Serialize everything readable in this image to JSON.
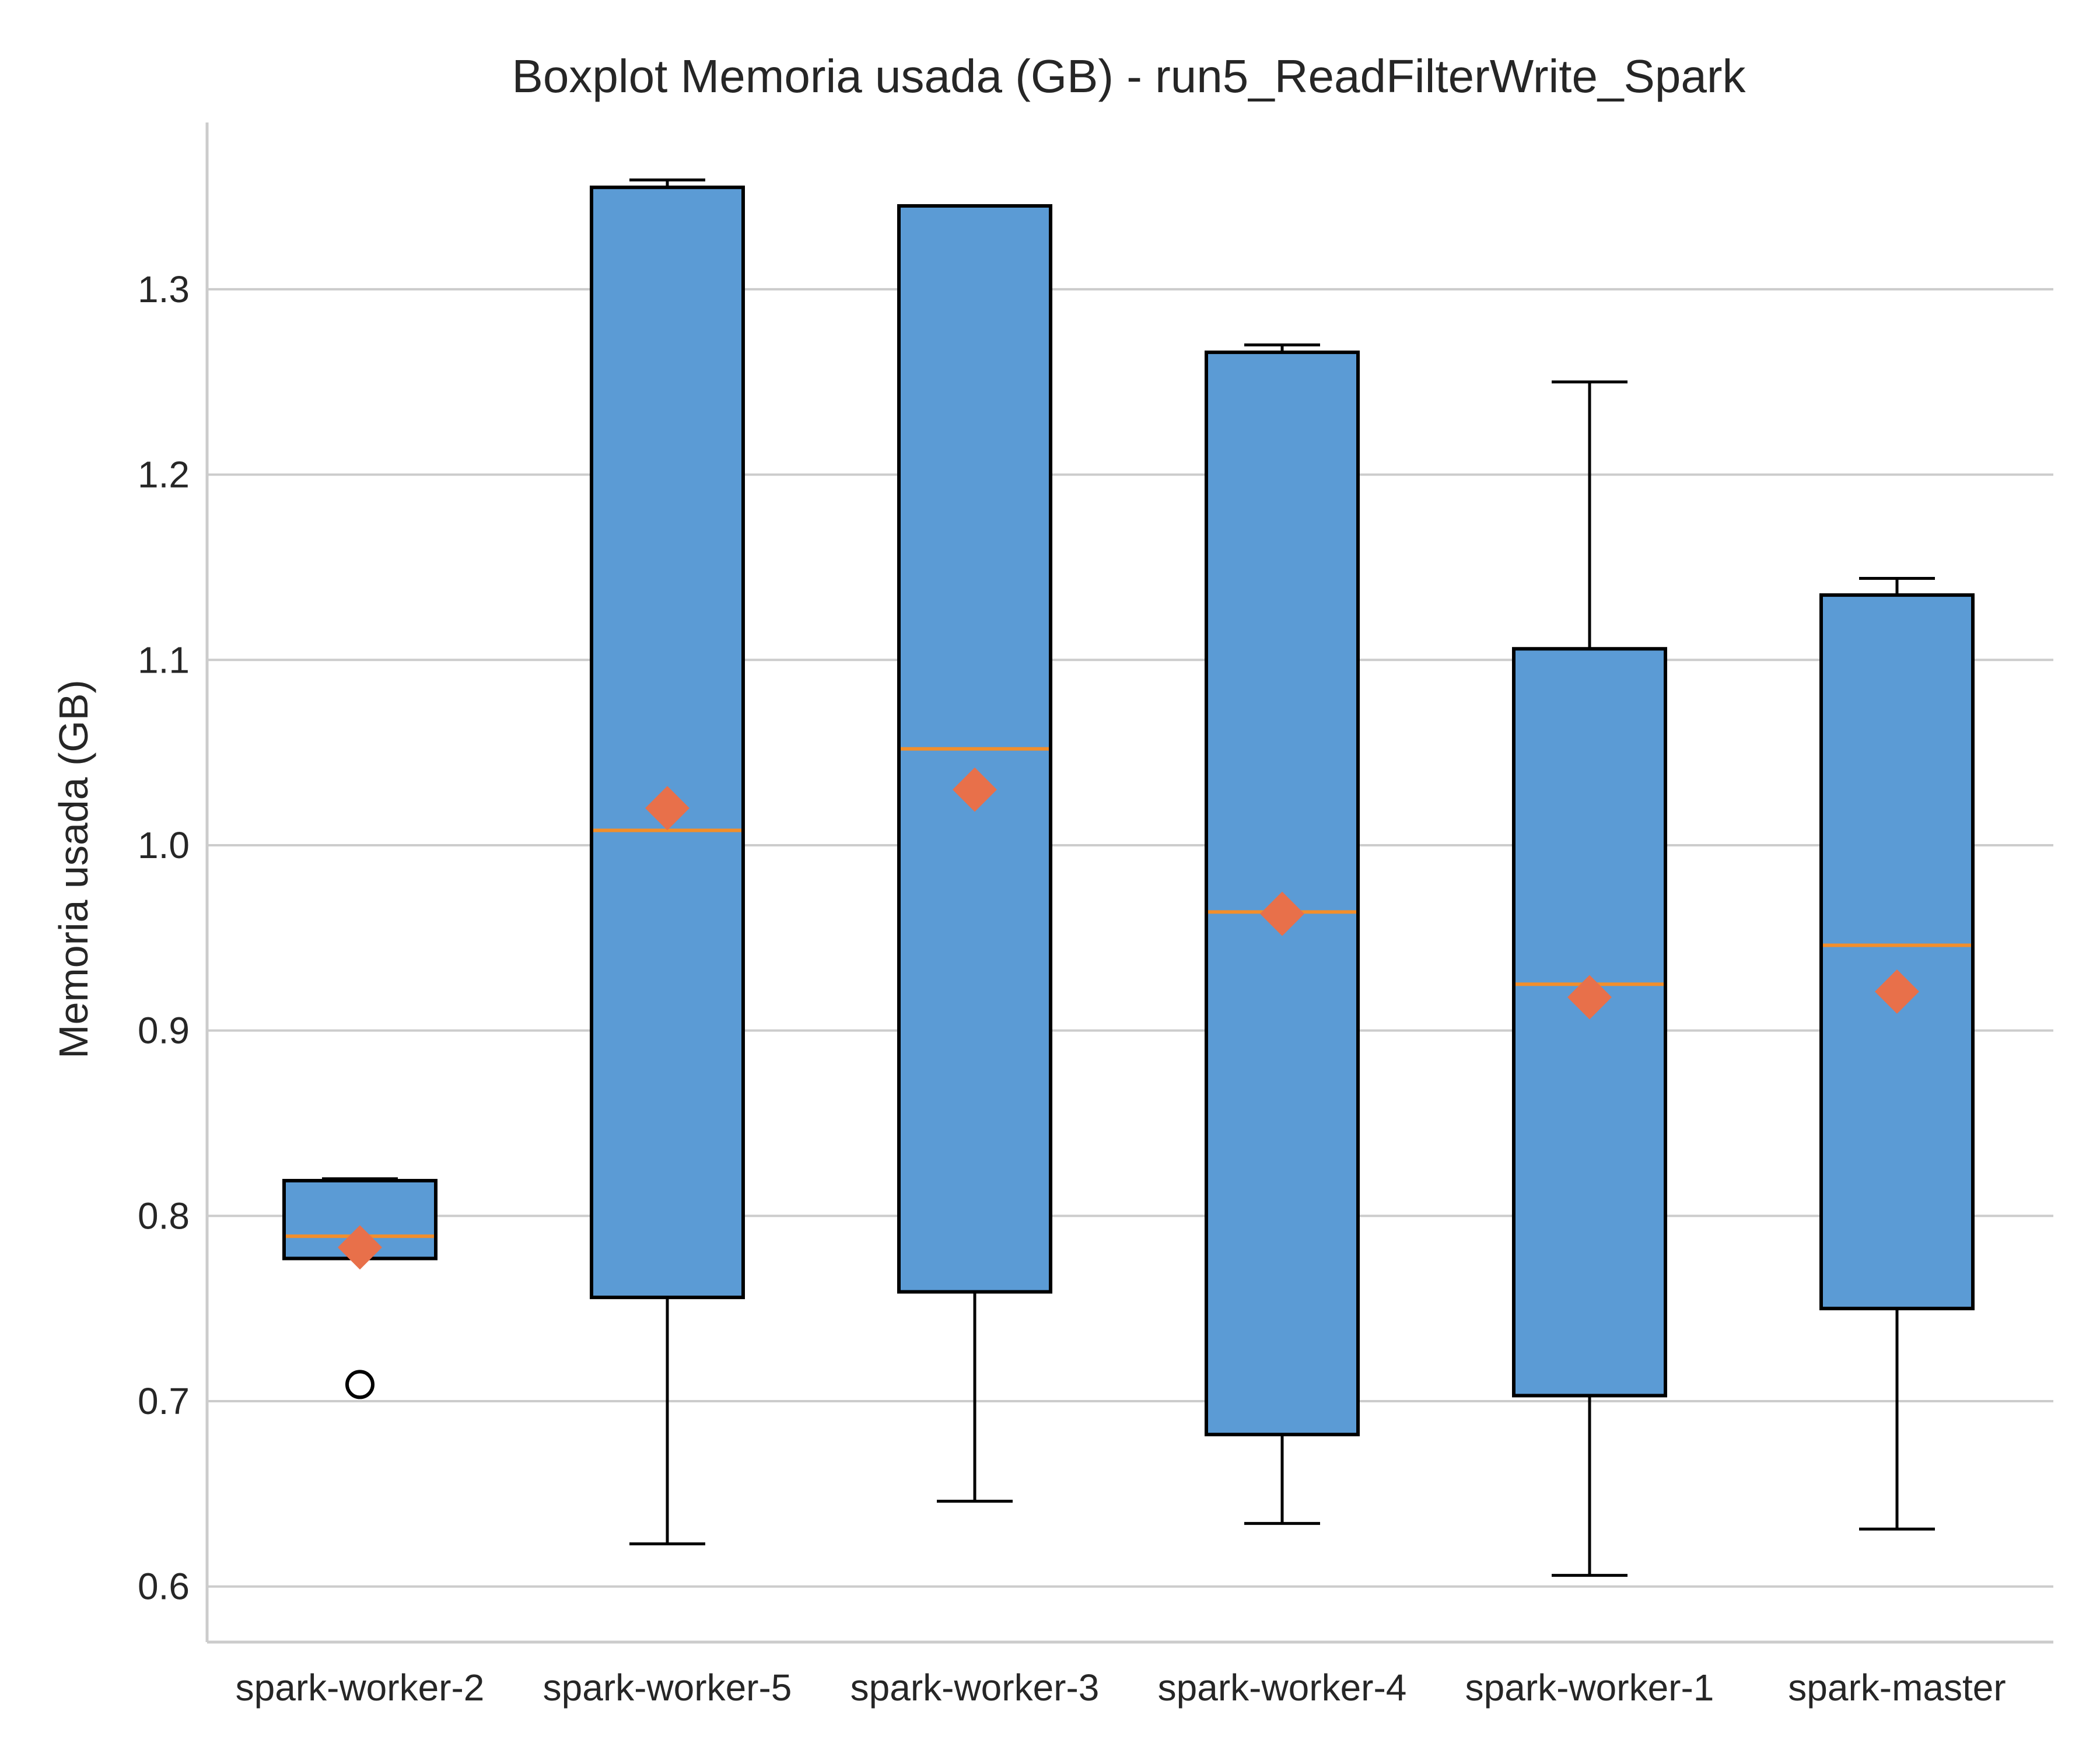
{
  "chart_data": {
    "type": "boxplot",
    "title": "Boxplot Memoria usada (GB) - run5_ReadFilterWrite_Spark",
    "xlabel": "",
    "ylabel": "Memoria usada (GB)",
    "ylim": [
      0.57,
      1.39
    ],
    "yticks": [
      0.6,
      0.7,
      0.8,
      0.9,
      1.0,
      1.1,
      1.2,
      1.3
    ],
    "grid": "y",
    "colors": {
      "box": "#5b9bd5",
      "median": "#f28e2b",
      "mean": "#e8704a",
      "outline": "#000000"
    },
    "categories": [
      "spark-worker-2",
      "spark-worker-5",
      "spark-worker-3",
      "spark-worker-4",
      "spark-worker-1",
      "spark-master"
    ],
    "boxes": [
      {
        "whislo": 0.777,
        "q1": 0.777,
        "med": 0.789,
        "q3": 0.819,
        "whishi": 0.82,
        "mean": 0.783,
        "fliers": [
          0.709
        ]
      },
      {
        "whislo": 0.623,
        "q1": 0.756,
        "med": 1.008,
        "q3": 1.355,
        "whishi": 1.359,
        "mean": 1.02,
        "fliers": []
      },
      {
        "whislo": 0.646,
        "q1": 0.759,
        "med": 1.052,
        "q3": 1.345,
        "whishi": 1.345,
        "mean": 1.03,
        "fliers": []
      },
      {
        "whislo": 0.634,
        "q1": 0.682,
        "med": 0.964,
        "q3": 1.266,
        "whishi": 1.27,
        "mean": 0.963,
        "fliers": []
      },
      {
        "whislo": 0.606,
        "q1": 0.703,
        "med": 0.925,
        "q3": 1.106,
        "whishi": 1.25,
        "mean": 0.918,
        "fliers": []
      },
      {
        "whislo": 0.631,
        "q1": 0.75,
        "med": 0.946,
        "q3": 1.135,
        "whishi": 1.144,
        "mean": 0.921,
        "fliers": []
      }
    ]
  }
}
